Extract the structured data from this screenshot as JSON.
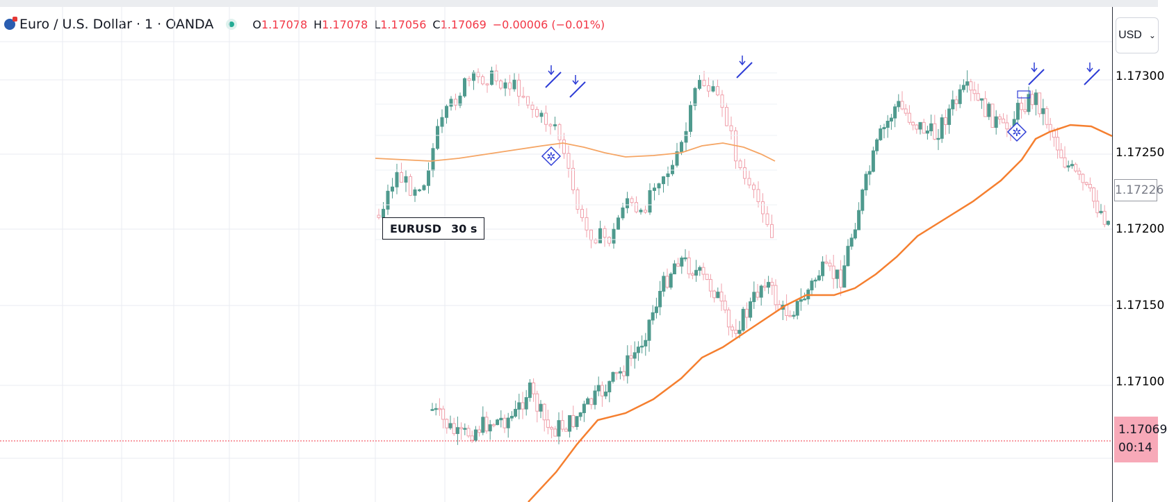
{
  "header": {
    "title": "Euro / U.S. Dollar · 1 · OANDA",
    "ohlc": [
      {
        "k": "O",
        "v": "1.17078"
      },
      {
        "k": "H",
        "v": "1.17078"
      },
      {
        "k": "L",
        "v": "1.17056"
      },
      {
        "k": "C",
        "v": "1.17069"
      },
      {
        "k": "",
        "v": "−0.00006 (−0.01%)"
      }
    ]
  },
  "axis": {
    "currency": "USD",
    "ticks": [
      "1.17300",
      "1.17250",
      "1.17200",
      "1.17150",
      "1.17100"
    ],
    "boxed_value": "1.17226",
    "current_price": "1.17069",
    "countdown": "00:14"
  },
  "inset": {
    "symbol": "EURUSD",
    "timeframe": "30 s"
  },
  "colors": {
    "up": "#4f9a8e",
    "down": "#f0a0ab",
    "ma": "#f57f2f",
    "ma_inset": "#f5a564",
    "signal": "#2e3dd6",
    "grid": "#e8ebf2",
    "current_line": "#f23645"
  },
  "chart_data": {
    "type": "candlestick",
    "y_axis_ticks": [
      1.173,
      1.1725,
      1.172,
      1.1715,
      1.171
    ],
    "current_price": 1.17069
  }
}
